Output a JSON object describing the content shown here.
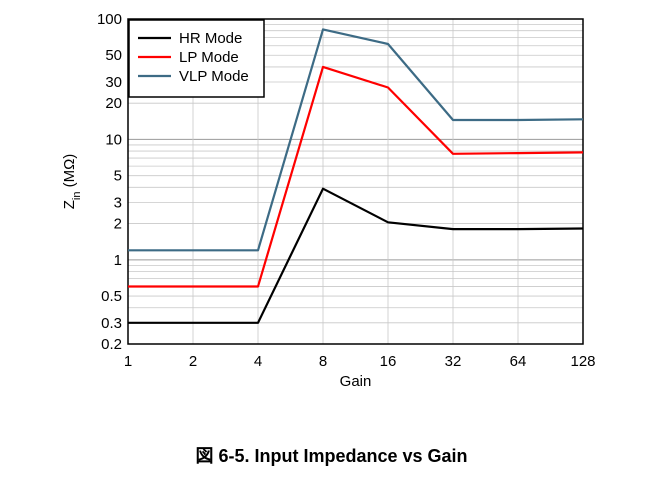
{
  "caption": "図 6-5. Input Impedance vs Gain",
  "chart_data": {
    "type": "line",
    "xlabel": "Gain",
    "ylabel_main": "Z",
    "ylabel_sub": "in",
    "ylabel_unit": " (MΩ)",
    "y_scale": "log",
    "ylim": [
      0.2,
      100
    ],
    "x_scale": "log2",
    "x": [
      1,
      2,
      4,
      8,
      16,
      32,
      64,
      128
    ],
    "x_tick_labels": [
      "1",
      "2",
      "4",
      "8",
      "16",
      "32",
      "64",
      "128"
    ],
    "y_tick_values": [
      0.2,
      0.3,
      0.5,
      1,
      2,
      3,
      5,
      10,
      20,
      30,
      50,
      100
    ],
    "y_tick_labels": [
      "0.2",
      "0.3",
      "0.5",
      "1",
      "2",
      "3",
      "5",
      "10",
      "20",
      "30",
      "50",
      "100"
    ],
    "grid": true,
    "legend_position": "top-left",
    "series": [
      {
        "name": "HR Mode",
        "color": "#000000",
        "values": [
          0.3,
          0.3,
          0.3,
          3.9,
          2.05,
          1.8,
          1.8,
          1.82
        ]
      },
      {
        "name": "LP Mode",
        "color": "#ff0000",
        "values": [
          0.6,
          0.6,
          0.6,
          40,
          27,
          7.6,
          7.7,
          7.8
        ]
      },
      {
        "name": "VLP Mode",
        "color": "#3d6b85",
        "values": [
          1.2,
          1.2,
          1.2,
          82,
          62,
          14.5,
          14.5,
          14.7
        ]
      }
    ]
  }
}
